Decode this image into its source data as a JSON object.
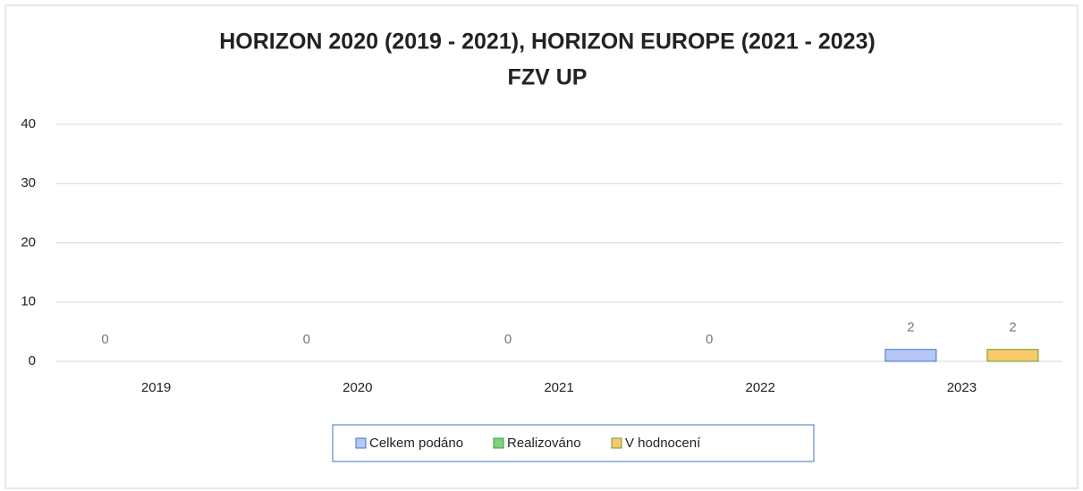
{
  "chart_data": {
    "type": "bar",
    "title": [
      "HORIZON 2020 (2019 - 2021), HORIZON EUROPE (2021  - 2023)",
      "FZV UP"
    ],
    "categories": [
      "2019",
      "2020",
      "2021",
      "2022",
      "2023"
    ],
    "series": [
      {
        "name": "Celkem podáno",
        "color": "#b4c7f5",
        "edge": "#4472c4",
        "values": [
          0,
          0,
          0,
          0,
          2
        ]
      },
      {
        "name": "Realizováno",
        "color": "#7fd17f",
        "edge": "#3c9a3c",
        "values": [
          null,
          null,
          null,
          null,
          null
        ]
      },
      {
        "name": "V hodnocení",
        "color": "#f7c96b",
        "edge": "#6f9a2a",
        "values": [
          null,
          null,
          null,
          null,
          2
        ]
      }
    ],
    "ylim": [
      0,
      40
    ],
    "yticks": [
      0,
      10,
      20,
      30,
      40
    ],
    "grid": true,
    "legend": "bottom"
  }
}
